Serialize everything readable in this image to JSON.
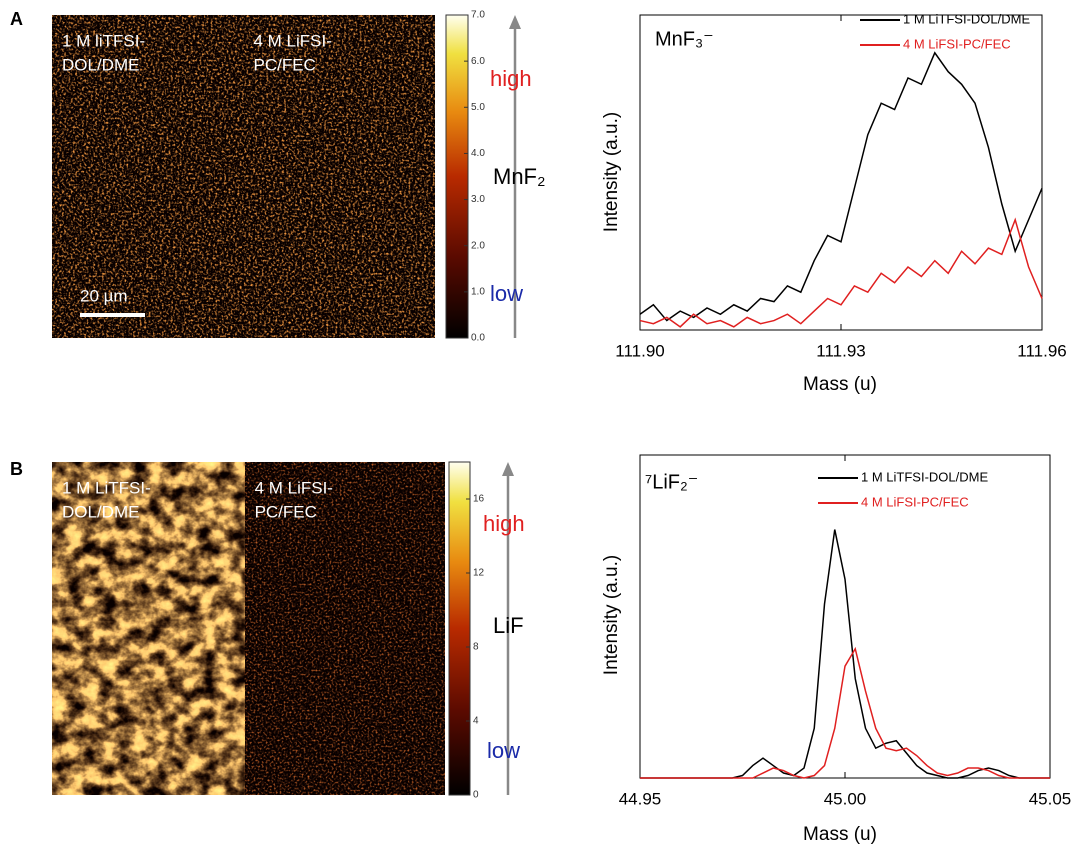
{
  "chart_data": [
    {
      "type": "heatmap",
      "panel": "A",
      "samples": [
        {
          "lines": [
            "1 M liTFSI-",
            "DOL/DME"
          ]
        },
        {
          "lines": [
            "4 M LiFSI-",
            "PC/FEC"
          ]
        }
      ],
      "scale_bar": "20 µm",
      "species": "MnF₂",
      "high_label": "high",
      "low_label": "low",
      "clim": [
        0,
        7
      ],
      "cticks": [
        {
          "value": 0,
          "label": "0.0"
        },
        {
          "value": 1,
          "label": "1.0"
        },
        {
          "value": 2,
          "label": "2.0"
        },
        {
          "value": 3,
          "label": "3.0"
        },
        {
          "value": 4,
          "label": "4.0"
        },
        {
          "value": 5,
          "label": "5.0"
        },
        {
          "value": 6,
          "label": "6.0"
        },
        {
          "value": 7,
          "label": "7.0"
        }
      ]
    },
    {
      "type": "line",
      "title": "MnF₃⁻",
      "x_label": "Mass (u)",
      "y_label": "Intensity (a.u.)",
      "x": [
        111.9,
        111.902,
        111.904,
        111.906,
        111.908,
        111.91,
        111.912,
        111.914,
        111.916,
        111.918,
        111.92,
        111.922,
        111.924,
        111.926,
        111.928,
        111.93,
        111.932,
        111.934,
        111.936,
        111.938,
        111.94,
        111.942,
        111.944,
        111.946,
        111.948,
        111.95,
        111.952,
        111.954,
        111.956,
        111.958,
        111.96
      ],
      "xlim": [
        111.9,
        111.96
      ],
      "xticks": [
        {
          "value": 111.9,
          "label": "111.90"
        },
        111.93,
        111.96
      ],
      "ylim": [
        0,
        100
      ],
      "series": [
        {
          "name": "1 M LiTFSI-DOL/DME",
          "color": "#000000",
          "values": [
            5,
            8,
            3,
            6,
            4,
            7,
            5,
            8,
            6,
            10,
            9,
            14,
            12,
            22,
            30,
            28,
            45,
            62,
            72,
            70,
            80,
            78,
            88,
            82,
            78,
            72,
            58,
            40,
            25,
            35,
            45
          ]
        },
        {
          "name": "4 M LiFSI-PC/FEC",
          "color": "#e02020",
          "values": [
            3,
            2,
            4,
            1,
            5,
            2,
            3,
            1,
            4,
            2,
            3,
            5,
            2,
            6,
            10,
            8,
            14,
            12,
            18,
            15,
            20,
            17,
            22,
            18,
            25,
            21,
            26,
            24,
            35,
            20,
            10
          ]
        }
      ]
    },
    {
      "type": "heatmap",
      "panel": "B",
      "samples": [
        {
          "lines": [
            "1 M LiTFSI-",
            "DOL/DME"
          ]
        },
        {
          "lines": [
            "4 M LiFSI-",
            "PC/FEC"
          ]
        }
      ],
      "species": "LiF",
      "high_label": "high",
      "low_label": "low",
      "clim": [
        0,
        18
      ],
      "cticks": [
        0,
        4,
        8,
        12,
        16
      ]
    },
    {
      "type": "line",
      "title": "⁷LiF₂⁻",
      "x_label": "Mass (u)",
      "y_label": "Intensity (a.u.)",
      "x": [
        44.95,
        44.9525,
        44.955,
        44.9575,
        44.96,
        44.9625,
        44.965,
        44.9675,
        44.97,
        44.9725,
        44.975,
        44.9775,
        44.98,
        44.9825,
        44.985,
        44.9875,
        44.99,
        44.9925,
        44.995,
        44.9975,
        45,
        45.0025,
        45.005,
        45.0075,
        45.01,
        45.0125,
        45.015,
        45.0175,
        45.02,
        45.0225,
        45.025,
        45.0275,
        45.03,
        45.0325,
        45.035,
        45.0375,
        45.04,
        45.0425,
        45.045,
        45.0475,
        45.05
      ],
      "xlim": [
        44.95,
        45.05
      ],
      "xticks": [
        44.95,
        {
          "value": 45,
          "label": "45.00"
        },
        45.05
      ],
      "ylim": [
        0,
        130
      ],
      "series": [
        {
          "name": "1 M LiTFSI-DOL/DME",
          "color": "#000000",
          "values": [
            0,
            0,
            0,
            0,
            0,
            0,
            0,
            0,
            0,
            0,
            1,
            5,
            8,
            5,
            2,
            1,
            4,
            20,
            70,
            100,
            80,
            40,
            20,
            12,
            14,
            15,
            10,
            5,
            2,
            1,
            0,
            0,
            1,
            3,
            4,
            3,
            1,
            0,
            0,
            0,
            0
          ]
        },
        {
          "name": "4 M LiFSI-PC/FEC",
          "color": "#e02020",
          "values": [
            0,
            0,
            0,
            0,
            0,
            0,
            0,
            0,
            0,
            0,
            0,
            0,
            2,
            4,
            3,
            1,
            0,
            1,
            5,
            20,
            45,
            52,
            35,
            20,
            12,
            11,
            12,
            9,
            5,
            2,
            1,
            2,
            4,
            4,
            3,
            1,
            0,
            0,
            0,
            0,
            0
          ]
        }
      ]
    }
  ]
}
